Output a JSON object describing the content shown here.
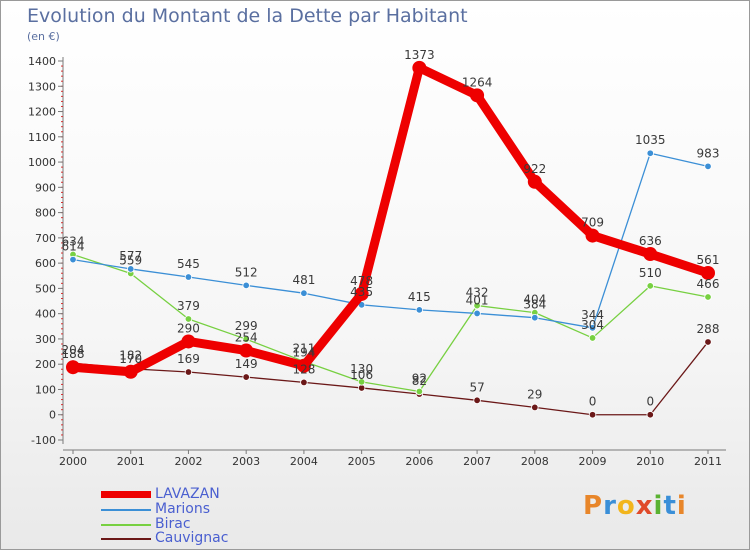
{
  "title": "Evolution du Montant de la Dette par Habitant",
  "unit": "(en €)",
  "logo": {
    "letters": [
      "P",
      "r",
      "o",
      "x",
      "i",
      "t",
      "i"
    ],
    "colors": [
      "#e8862a",
      "#3a8fd8",
      "#f2b51c",
      "#e04a2a",
      "#5ab232",
      "#3a8fd8",
      "#e8862a"
    ]
  },
  "chart_data": {
    "type": "line",
    "x": [
      "2000",
      "2001",
      "2002",
      "2003",
      "2004",
      "2005",
      "2006",
      "2007",
      "2008",
      "2009",
      "2010",
      "2011"
    ],
    "ylim": [
      -100,
      1400
    ],
    "yticks": [
      "-100",
      "0",
      "100",
      "200",
      "300",
      "400",
      "500",
      "600",
      "700",
      "800",
      "900",
      "1000",
      "1100",
      "1200",
      "1300",
      "1400"
    ],
    "grid": false,
    "legend_position": "bottom-left",
    "series": [
      {
        "name": "LAVAZAN",
        "color": "#ee0000",
        "values": [
          188,
          170,
          290,
          254,
          194,
          478,
          1373,
          1264,
          922,
          709,
          636,
          561
        ],
        "labels": [
          "188",
          "170",
          "290",
          "254",
          "194",
          "478",
          "1373",
          "1264",
          "922",
          "709",
          "636",
          "561"
        ]
      },
      {
        "name": "Marions",
        "color": "#3b8fd6",
        "values": [
          614,
          577,
          545,
          512,
          481,
          435,
          415,
          401,
          384,
          344,
          1035,
          983
        ],
        "labels": [
          "614",
          "577",
          "545",
          "512",
          "481",
          "435",
          "415",
          "401",
          "384",
          "344",
          "1035",
          "983"
        ]
      },
      {
        "name": "Birac",
        "color": "#77d041",
        "values": [
          634,
          559,
          379,
          299,
          211,
          130,
          92,
          432,
          404,
          304,
          510,
          466
        ],
        "labels": [
          "634",
          "559",
          "379",
          "299",
          "211",
          "130",
          "92",
          "432",
          "404",
          "304",
          "510",
          "466"
        ]
      },
      {
        "name": "Cauvignac",
        "color": "#6b1818",
        "values": [
          204,
          182,
          169,
          149,
          128,
          106,
          82,
          57,
          29,
          0,
          0,
          288
        ],
        "labels": [
          "204",
          "182",
          "169",
          "149",
          "128",
          "106",
          "82",
          "57",
          "29",
          "0",
          "0",
          "288"
        ]
      }
    ]
  }
}
